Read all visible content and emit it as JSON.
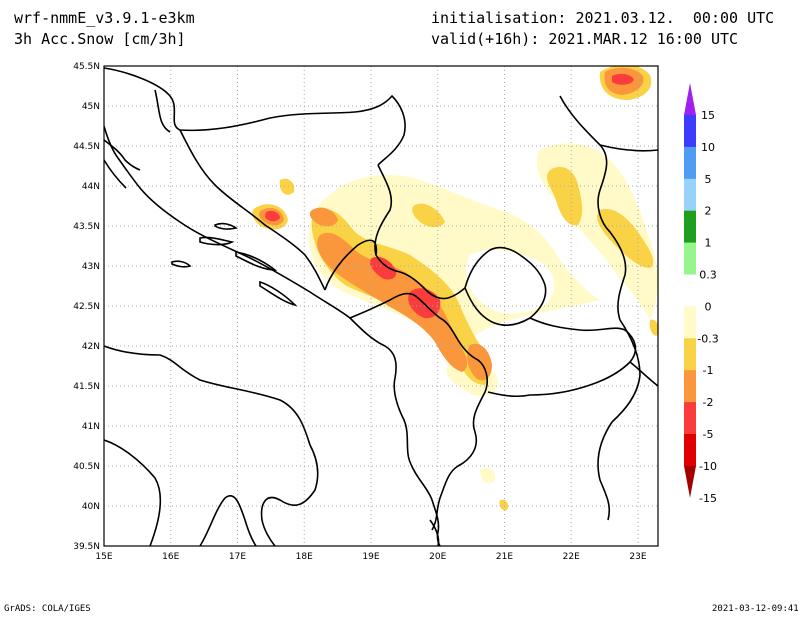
{
  "header": {
    "model": "wrf-nmmE_v3.9.1-e3km",
    "field": "3h Acc.Snow [cm/3h]",
    "init": "initialisation: 2021.03.12.  00:00 UTC",
    "valid": "valid(+16h): 2021.MAR.12 16:00 UTC"
  },
  "map": {
    "lon_ticks": [
      "15E",
      "16E",
      "17E",
      "18E",
      "19E",
      "20E",
      "21E",
      "22E",
      "23E"
    ],
    "lat_ticks": [
      "45.5N",
      "45N",
      "44.5N",
      "44N",
      "43.5N",
      "43N",
      "42.5N",
      "42N",
      "41.5N",
      "41N",
      "40.5N",
      "40N",
      "39.5N"
    ],
    "lon_range": [
      15,
      23.3
    ],
    "lat_range": [
      39.5,
      45.5
    ],
    "grid": "dotted"
  },
  "colorbar": {
    "labels": [
      "15",
      "10",
      "5",
      "2",
      "1",
      "0.3",
      "0",
      "-0.3",
      "-1",
      "-2",
      "-5",
      "-10",
      "-15"
    ],
    "colors": [
      "#a020f0",
      "#3c3cff",
      "#4f9cf4",
      "#96d2fa",
      "#1ea01e",
      "#96f58c",
      "#ffffff",
      "#fffac8",
      "#fad246",
      "#fa963c",
      "#fa3c3c",
      "#e10000",
      "#a50000"
    ]
  },
  "footer": {
    "left": "GrADS: COLA/IGES",
    "right": "2021-03-12-09:41"
  }
}
